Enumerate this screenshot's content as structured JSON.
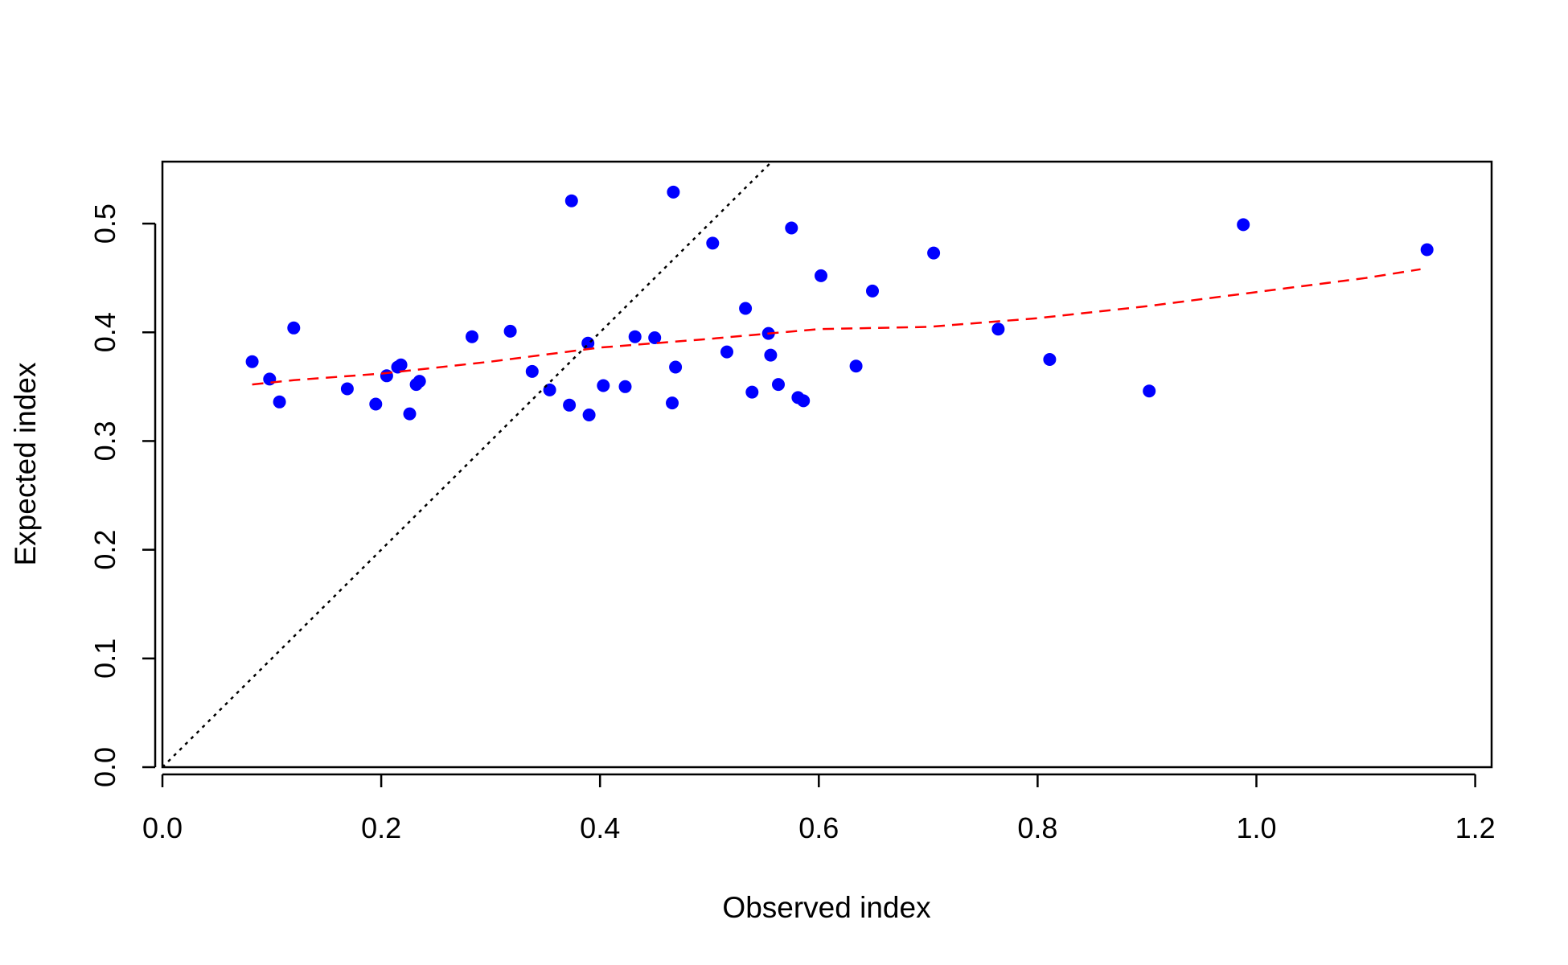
{
  "chart_data": {
    "type": "scatter",
    "title": "",
    "xlabel": "Observed index",
    "ylabel": "Expected index",
    "xlim": [
      0.0,
      1.215
    ],
    "ylim": [
      0.0,
      0.557
    ],
    "x_ticks": [
      "0.0",
      "0.2",
      "0.4",
      "0.6",
      "0.8",
      "1.0",
      "1.2"
    ],
    "y_ticks": [
      "0.0",
      "0.1",
      "0.2",
      "0.3",
      "0.4",
      "0.5"
    ],
    "grid": false,
    "legend": "none",
    "series": [
      {
        "marker": "filled-circle",
        "color": "#0000ff",
        "points": [
          [
            0.082,
            0.373
          ],
          [
            0.098,
            0.357
          ],
          [
            0.107,
            0.336
          ],
          [
            0.12,
            0.404
          ],
          [
            0.169,
            0.348
          ],
          [
            0.195,
            0.334
          ],
          [
            0.205,
            0.36
          ],
          [
            0.215,
            0.368
          ],
          [
            0.218,
            0.37
          ],
          [
            0.226,
            0.325
          ],
          [
            0.232,
            0.352
          ],
          [
            0.235,
            0.355
          ],
          [
            0.283,
            0.396
          ],
          [
            0.318,
            0.401
          ],
          [
            0.338,
            0.364
          ],
          [
            0.354,
            0.347
          ],
          [
            0.372,
            0.333
          ],
          [
            0.374,
            0.521
          ],
          [
            0.389,
            0.39
          ],
          [
            0.39,
            0.324
          ],
          [
            0.403,
            0.351
          ],
          [
            0.423,
            0.35
          ],
          [
            0.432,
            0.396
          ],
          [
            0.45,
            0.395
          ],
          [
            0.466,
            0.335
          ],
          [
            0.467,
            0.529
          ],
          [
            0.469,
            0.368
          ],
          [
            0.503,
            0.482
          ],
          [
            0.516,
            0.382
          ],
          [
            0.533,
            0.422
          ],
          [
            0.539,
            0.345
          ],
          [
            0.554,
            0.399
          ],
          [
            0.556,
            0.379
          ],
          [
            0.563,
            0.352
          ],
          [
            0.575,
            0.496
          ],
          [
            0.581,
            0.34
          ],
          [
            0.586,
            0.337
          ],
          [
            0.602,
            0.452
          ],
          [
            0.634,
            0.369
          ],
          [
            0.649,
            0.438
          ],
          [
            0.705,
            0.473
          ],
          [
            0.764,
            0.403
          ],
          [
            0.811,
            0.375
          ],
          [
            0.902,
            0.346
          ],
          [
            0.988,
            0.499
          ],
          [
            1.156,
            0.476
          ]
        ]
      },
      {
        "type": "line",
        "style": "dashed",
        "color": "#ff0000",
        "points": [
          [
            0.082,
            0.352
          ],
          [
            0.12,
            0.356
          ],
          [
            0.2,
            0.362
          ],
          [
            0.3,
            0.373
          ],
          [
            0.4,
            0.386
          ],
          [
            0.5,
            0.394
          ],
          [
            0.6,
            0.403
          ],
          [
            0.7,
            0.405
          ],
          [
            0.8,
            0.413
          ],
          [
            0.9,
            0.424
          ],
          [
            1.0,
            0.437
          ],
          [
            1.1,
            0.45
          ],
          [
            1.15,
            0.458
          ]
        ]
      },
      {
        "type": "line",
        "style": "dotted",
        "color": "#000000",
        "points": [
          [
            0.0,
            0.0
          ],
          [
            0.557,
            0.557
          ]
        ]
      }
    ]
  }
}
